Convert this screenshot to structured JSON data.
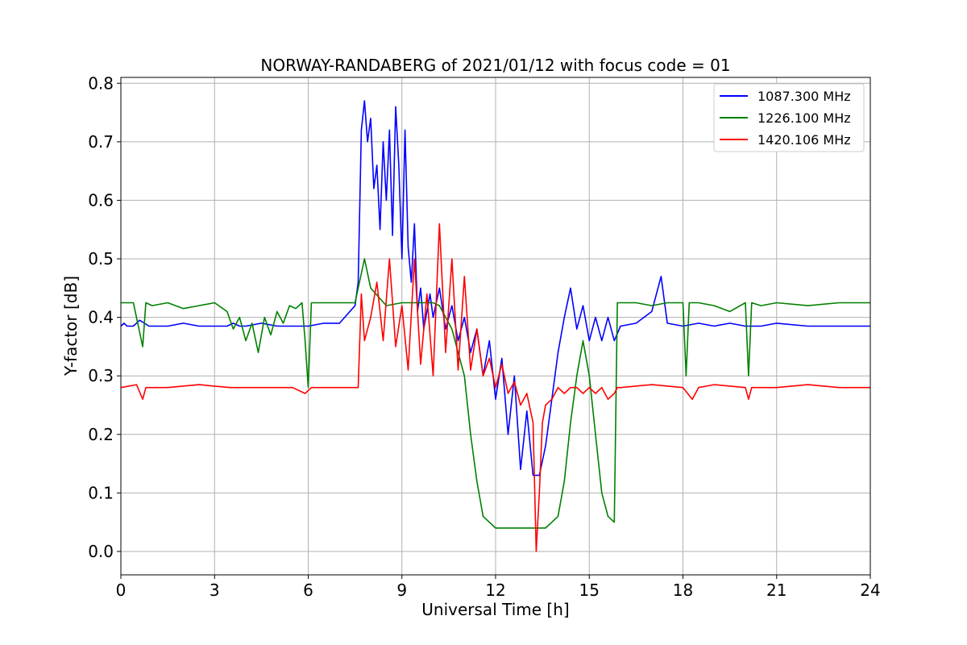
{
  "chart_data": {
    "type": "line",
    "title": "NORWAY-RANDABERG of 2021/01/12 with focus code = 01",
    "xlabel": "Universal Time [h]",
    "ylabel": "Y-factor [dB]",
    "xlim": [
      0,
      24
    ],
    "ylim": [
      -0.04,
      0.81
    ],
    "xticks": [
      0,
      3,
      6,
      9,
      12,
      15,
      18,
      21,
      24
    ],
    "xtick_labels": [
      "0",
      "3",
      "6",
      "9",
      "12",
      "15",
      "18",
      "21",
      "24"
    ],
    "yticks": [
      0.0,
      0.1,
      0.2,
      0.3,
      0.4,
      0.5,
      0.6,
      0.7,
      0.8
    ],
    "ytick_labels": [
      "0.0",
      "0.1",
      "0.2",
      "0.3",
      "0.4",
      "0.5",
      "0.6",
      "0.7",
      "0.8"
    ],
    "grid": true,
    "legend_position": "top-right",
    "series": [
      {
        "name": "1087.300 MHz",
        "color": "#0000ff",
        "x": [
          0,
          0.1,
          0.2,
          0.4,
          0.6,
          0.9,
          1.5,
          2.0,
          2.5,
          3.0,
          3.4,
          3.6,
          3.8,
          4.0,
          4.5,
          5.0,
          5.5,
          6.0,
          6.5,
          7.0,
          7.5,
          7.6,
          7.7,
          7.8,
          7.9,
          8.0,
          8.1,
          8.2,
          8.3,
          8.4,
          8.5,
          8.6,
          8.7,
          8.8,
          8.9,
          9.0,
          9.1,
          9.2,
          9.3,
          9.4,
          9.5,
          9.6,
          9.7,
          9.8,
          9.9,
          10.0,
          10.2,
          10.4,
          10.6,
          10.8,
          11.0,
          11.2,
          11.4,
          11.6,
          11.8,
          12.0,
          12.2,
          12.4,
          12.6,
          12.8,
          13.0,
          13.2,
          13.4,
          13.6,
          13.8,
          14.0,
          14.2,
          14.4,
          14.6,
          14.8,
          15.0,
          15.2,
          15.4,
          15.6,
          15.8,
          16.0,
          16.5,
          17.0,
          17.3,
          17.5,
          18.0,
          18.5,
          19.0,
          19.5,
          20.0,
          20.5,
          21.0,
          22.0,
          23.0,
          24.0
        ],
        "y": [
          0.385,
          0.39,
          0.385,
          0.385,
          0.395,
          0.385,
          0.385,
          0.39,
          0.385,
          0.385,
          0.385,
          0.39,
          0.385,
          0.385,
          0.39,
          0.385,
          0.385,
          0.385,
          0.39,
          0.39,
          0.42,
          0.46,
          0.72,
          0.77,
          0.7,
          0.74,
          0.62,
          0.66,
          0.55,
          0.7,
          0.6,
          0.72,
          0.54,
          0.76,
          0.66,
          0.5,
          0.72,
          0.52,
          0.46,
          0.56,
          0.41,
          0.45,
          0.38,
          0.41,
          0.44,
          0.4,
          0.45,
          0.38,
          0.42,
          0.36,
          0.4,
          0.34,
          0.38,
          0.3,
          0.36,
          0.26,
          0.33,
          0.2,
          0.3,
          0.14,
          0.24,
          0.13,
          0.13,
          0.18,
          0.26,
          0.34,
          0.4,
          0.45,
          0.38,
          0.42,
          0.36,
          0.4,
          0.36,
          0.4,
          0.36,
          0.385,
          0.39,
          0.41,
          0.47,
          0.39,
          0.385,
          0.39,
          0.385,
          0.39,
          0.385,
          0.385,
          0.39,
          0.385,
          0.385,
          0.385
        ]
      },
      {
        "name": "1226.100 MHz",
        "color": "#008000",
        "x": [
          0,
          0.4,
          0.7,
          0.8,
          1.0,
          1.5,
          2.0,
          2.5,
          3.0,
          3.4,
          3.6,
          3.8,
          4.0,
          4.2,
          4.4,
          4.6,
          4.8,
          5.0,
          5.2,
          5.4,
          5.6,
          5.8,
          5.9,
          6.0,
          6.1,
          6.5,
          7.0,
          7.5,
          7.8,
          8.0,
          8.5,
          9.0,
          9.5,
          10.0,
          10.2,
          10.4,
          10.6,
          10.8,
          11.0,
          11.2,
          11.4,
          11.6,
          11.8,
          12.0,
          12.2,
          12.4,
          12.6,
          12.8,
          13.0,
          13.2,
          13.4,
          13.6,
          13.8,
          14.0,
          14.2,
          14.4,
          14.6,
          14.8,
          15.0,
          15.2,
          15.4,
          15.6,
          15.8,
          15.9,
          16.0,
          16.5,
          17.0,
          17.5,
          18.0,
          18.1,
          18.2,
          18.5,
          19.0,
          19.5,
          20.0,
          20.1,
          20.2,
          20.5,
          21.0,
          22.0,
          23.0,
          24.0
        ],
        "y": [
          0.425,
          0.425,
          0.35,
          0.425,
          0.42,
          0.425,
          0.415,
          0.42,
          0.425,
          0.41,
          0.38,
          0.4,
          0.36,
          0.39,
          0.34,
          0.4,
          0.37,
          0.41,
          0.39,
          0.42,
          0.415,
          0.425,
          0.36,
          0.28,
          0.425,
          0.425,
          0.425,
          0.425,
          0.5,
          0.45,
          0.42,
          0.425,
          0.425,
          0.425,
          0.42,
          0.4,
          0.38,
          0.34,
          0.3,
          0.2,
          0.12,
          0.06,
          0.05,
          0.04,
          0.04,
          0.04,
          0.04,
          0.04,
          0.04,
          0.04,
          0.04,
          0.04,
          0.05,
          0.06,
          0.12,
          0.22,
          0.3,
          0.36,
          0.3,
          0.2,
          0.1,
          0.06,
          0.05,
          0.425,
          0.425,
          0.425,
          0.42,
          0.425,
          0.425,
          0.3,
          0.425,
          0.425,
          0.42,
          0.41,
          0.425,
          0.3,
          0.425,
          0.42,
          0.425,
          0.42,
          0.425,
          0.425
        ]
      },
      {
        "name": "1420.106 MHz",
        "color": "#ff0000",
        "x": [
          0,
          0.5,
          0.7,
          0.8,
          1.5,
          2.5,
          3.5,
          4.5,
          5.5,
          5.9,
          6.0,
          6.1,
          7.0,
          7.6,
          7.7,
          7.8,
          8.0,
          8.2,
          8.4,
          8.6,
          8.8,
          9.0,
          9.2,
          9.4,
          9.6,
          9.8,
          10.0,
          10.2,
          10.4,
          10.6,
          10.8,
          11.0,
          11.2,
          11.4,
          11.6,
          11.8,
          12.0,
          12.2,
          12.4,
          12.6,
          12.8,
          13.0,
          13.2,
          13.3,
          13.4,
          13.5,
          13.6,
          13.8,
          14.0,
          14.2,
          14.4,
          14.6,
          14.8,
          15.0,
          15.2,
          15.4,
          15.6,
          15.8,
          15.9,
          16.0,
          17.0,
          18.0,
          18.3,
          18.5,
          19.0,
          20.0,
          20.1,
          20.2,
          21.0,
          22.0,
          23.0,
          24.0
        ],
        "y": [
          0.28,
          0.285,
          0.26,
          0.28,
          0.28,
          0.285,
          0.28,
          0.28,
          0.28,
          0.27,
          0.275,
          0.28,
          0.28,
          0.28,
          0.44,
          0.36,
          0.4,
          0.46,
          0.36,
          0.5,
          0.35,
          0.42,
          0.31,
          0.5,
          0.32,
          0.44,
          0.3,
          0.56,
          0.34,
          0.5,
          0.31,
          0.47,
          0.31,
          0.38,
          0.3,
          0.33,
          0.28,
          0.32,
          0.27,
          0.29,
          0.25,
          0.27,
          0.22,
          0.0,
          0.1,
          0.22,
          0.25,
          0.26,
          0.28,
          0.27,
          0.28,
          0.28,
          0.27,
          0.28,
          0.27,
          0.28,
          0.26,
          0.27,
          0.28,
          0.28,
          0.285,
          0.28,
          0.26,
          0.28,
          0.285,
          0.28,
          0.26,
          0.28,
          0.28,
          0.285,
          0.28,
          0.28
        ]
      }
    ]
  }
}
